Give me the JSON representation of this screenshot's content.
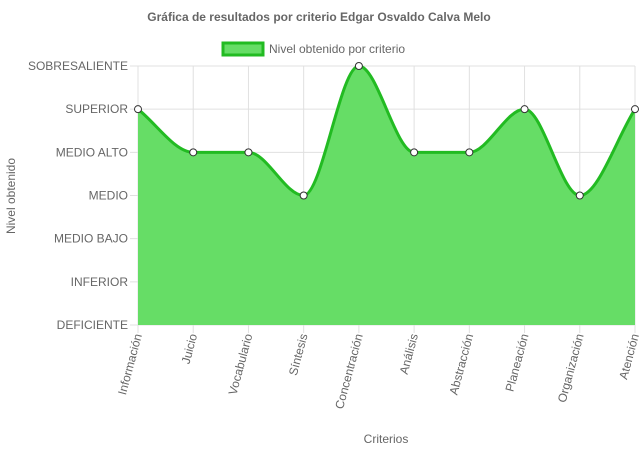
{
  "chart_data": {
    "type": "area",
    "title": "Gráfica de resultados por criterio Edgar Osvaldo Calva Melo",
    "xlabel": "Criterios",
    "ylabel": "Nivel obtenido",
    "y_levels": [
      "DEFICIENTE",
      "INFERIOR",
      "MEDIO BAJO",
      "MEDIO",
      "MEDIO ALTO",
      "SUPERIOR",
      "SOBRESALIENTE"
    ],
    "categories": [
      "Información",
      "Juicio",
      "Vocabulario",
      "Síntesis",
      "Concentración",
      "Análisis",
      "Abstracción",
      "Planeación",
      "Organización",
      "Atención"
    ],
    "series": [
      {
        "name": "Nivel obtenido por criterio",
        "values": [
          "SUPERIOR",
          "MEDIO ALTO",
          "MEDIO ALTO",
          "MEDIO",
          "SOBRESALIENTE",
          "MEDIO ALTO",
          "MEDIO ALTO",
          "SUPERIOR",
          "MEDIO",
          "SUPERIOR"
        ],
        "level_index": [
          5,
          4,
          4,
          3,
          6,
          4,
          4,
          5,
          3,
          5
        ]
      }
    ],
    "colors": {
      "fill": "#66dd66",
      "line": "#22bb22",
      "grid": "#e0e0e0",
      "point_fill": "#ffffff",
      "point_stroke": "#333333"
    },
    "legend_position": "top",
    "grid": true
  }
}
